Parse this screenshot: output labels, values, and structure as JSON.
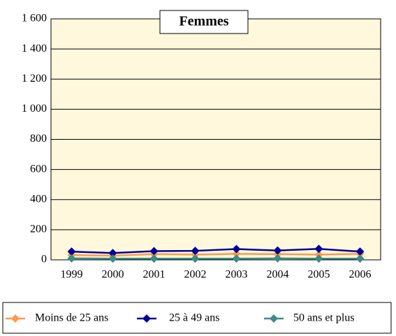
{
  "chart_data": {
    "type": "line",
    "title": "Femmes",
    "categories": [
      "1999",
      "2000",
      "2001",
      "2002",
      "2003",
      "2004",
      "2005",
      "2006"
    ],
    "series": [
      {
        "name": "Moins de 25 ans",
        "color": "#ff9a4d",
        "values": [
          32,
          28,
          38,
          35,
          40,
          38,
          35,
          40
        ]
      },
      {
        "name": "25 à 49 ans",
        "color": "#000099",
        "values": [
          55,
          45,
          58,
          60,
          72,
          62,
          73,
          55
        ]
      },
      {
        "name": "50 ans et plus",
        "color": "#3d8b85",
        "values": [
          10,
          8,
          8,
          8,
          8,
          10,
          8,
          8
        ]
      }
    ],
    "ylim": [
      0,
      1600
    ],
    "yticks": [
      0,
      200,
      400,
      600,
      800,
      {
        "value": 1000,
        "label": "1 000"
      },
      {
        "value": 1200,
        "label": "1 200"
      },
      {
        "value": 1400,
        "label": "1 400"
      },
      {
        "value": 1600,
        "label": "1 600"
      }
    ],
    "grid": true
  }
}
